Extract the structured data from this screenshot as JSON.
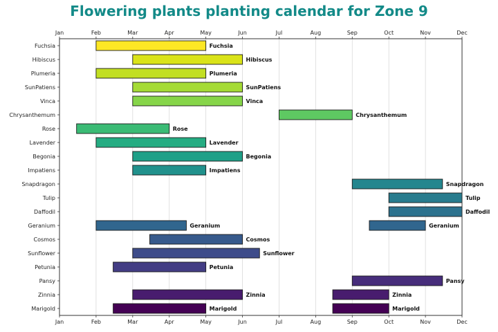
{
  "colors": {
    "title": "#138a88",
    "grid": "#d9d9d9",
    "bar_edge": "#1a1a1a"
  },
  "chart_data": {
    "type": "bar",
    "orientation": "horizontal",
    "title": "Flowering plants planting calendar for Zone 9",
    "x_ticks": [
      "Jan",
      "Feb",
      "Mar",
      "Apr",
      "May",
      "Jun",
      "Jul",
      "Aug",
      "Sep",
      "Oct",
      "Nov",
      "Dec"
    ],
    "x_tick_positions": [
      "Jan 1",
      "Feb 1",
      "Mar 1",
      "Apr 1",
      "May 1",
      "Jun 1",
      "Jul 1",
      "Aug 1",
      "Sep 1",
      "Oct 1",
      "Nov 1",
      "Dec 1"
    ],
    "xlim": [
      "Jan 1",
      "Dec 1"
    ],
    "grid": "vertical",
    "categories": [
      "Fuchsia",
      "Hibiscus",
      "Plumeria",
      "SunPatiens",
      "Vinca",
      "Chrysanthemum",
      "Rose",
      "Lavender",
      "Begonia",
      "Impatiens",
      "Snapdragon",
      "Tulip",
      "Daffodil",
      "Geranium",
      "Cosmos",
      "Sunflower",
      "Petunia",
      "Pansy",
      "Zinnia",
      "Marigold"
    ],
    "bars": [
      {
        "plant": "Fuchsia",
        "start": "Feb 1",
        "end": "May 1",
        "color": "#fde725",
        "label": "Fuchsia"
      },
      {
        "plant": "Hibiscus",
        "start": "Mar 1",
        "end": "Jun 1",
        "color": "#dae319",
        "label": "Hibiscus"
      },
      {
        "plant": "Plumeria",
        "start": "Feb 1",
        "end": "May 1",
        "color": "#c2df23",
        "label": "Plumeria"
      },
      {
        "plant": "SunPatiens",
        "start": "Mar 1",
        "end": "Jun 1",
        "color": "#a5db36",
        "label": "SunPatiens"
      },
      {
        "plant": "Vinca",
        "start": "Mar 1",
        "end": "Jun 1",
        "color": "#86d549",
        "label": "Vinca"
      },
      {
        "plant": "Chrysanthemum",
        "start": "Jul 1",
        "end": "Sep 1",
        "color": "#5ec962",
        "label": "Chrysanthemum"
      },
      {
        "plant": "Rose",
        "start": "Jan 15",
        "end": "Apr 1",
        "color": "#3bbb75",
        "label": "Rose"
      },
      {
        "plant": "Lavender",
        "start": "Feb 1",
        "end": "May 1",
        "color": "#25ac82",
        "label": "Lavender"
      },
      {
        "plant": "Begonia",
        "start": "Mar 1",
        "end": "Jun 1",
        "color": "#1fa088",
        "label": "Begonia"
      },
      {
        "plant": "Impatiens",
        "start": "Mar 1",
        "end": "May 1",
        "color": "#21918c",
        "label": "Impatiens"
      },
      {
        "plant": "Snapdragon",
        "start": "Sep 1",
        "end": "Nov 15",
        "color": "#24868e",
        "label": "Snapdragon"
      },
      {
        "plant": "Tulip",
        "start": "Oct 1",
        "end": "Dec 1",
        "color": "#287c8e",
        "label": "Tulip"
      },
      {
        "plant": "Daffodil",
        "start": "Oct 1",
        "end": "Dec 1",
        "color": "#2c728e",
        "label": "Daffodil"
      },
      {
        "plant": "Geranium",
        "start": "Feb 1",
        "end": "Apr 15",
        "color": "#31668e",
        "label": "Geranium"
      },
      {
        "plant": "Geranium",
        "start": "Sep 15",
        "end": "Nov 1",
        "color": "#31668e",
        "label": "Geranium"
      },
      {
        "plant": "Cosmos",
        "start": "Mar 15",
        "end": "Jun 1",
        "color": "#375a8c",
        "label": "Cosmos"
      },
      {
        "plant": "Sunflower",
        "start": "Mar 1",
        "end": "Jun 15",
        "color": "#3e4c8a",
        "label": "Sunflower"
      },
      {
        "plant": "Petunia",
        "start": "Feb 15",
        "end": "May 1",
        "color": "#433d84",
        "label": "Petunia"
      },
      {
        "plant": "Pansy",
        "start": "Sep 1",
        "end": "Nov 15",
        "color": "#472d7b",
        "label": "Pansy"
      },
      {
        "plant": "Zinnia",
        "start": "Mar 1",
        "end": "Jun 1",
        "color": "#481c6e",
        "label": "Zinnia"
      },
      {
        "plant": "Zinnia",
        "start": "Aug 15",
        "end": "Oct 1",
        "color": "#481c6e",
        "label": "Zinnia"
      },
      {
        "plant": "Marigold",
        "start": "Feb 15",
        "end": "May 1",
        "color": "#440154",
        "label": "Marigold"
      },
      {
        "plant": "Marigold",
        "start": "Aug 15",
        "end": "Oct 1",
        "color": "#440154",
        "label": "Marigold"
      }
    ]
  }
}
